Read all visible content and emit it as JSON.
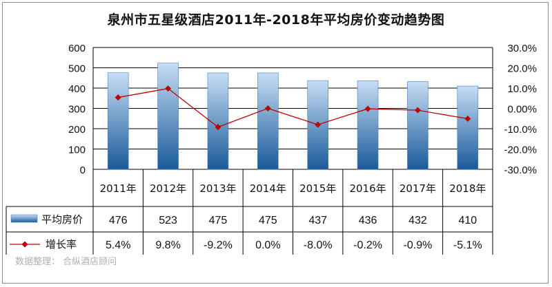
{
  "chart_data": {
    "type": "bar+line",
    "title": "泉州市五星级酒店2011年-2018年平均房价变动趋势图",
    "categories": [
      "2011年",
      "2012年",
      "2013年",
      "2014年",
      "2015年",
      "2016年",
      "2017年",
      "2018年"
    ],
    "series": [
      {
        "name": "平均房价",
        "type": "bar",
        "axis": "left",
        "values": [
          476,
          523,
          475,
          475,
          437,
          436,
          432,
          410
        ],
        "labels": [
          "476",
          "523",
          "475",
          "475",
          "437",
          "436",
          "432",
          "410"
        ]
      },
      {
        "name": "增长率",
        "type": "line",
        "axis": "right",
        "values": [
          5.4,
          9.8,
          -9.2,
          0.0,
          -8.0,
          -0.2,
          -0.9,
          -5.1
        ],
        "labels": [
          "5.4%",
          "9.8%",
          "-9.2%",
          "0.0%",
          "-8.0%",
          "-0.2%",
          "-0.9%",
          "-5.1%"
        ]
      }
    ],
    "y_left": {
      "ylim": [
        0,
        600
      ],
      "ticks": [
        "0",
        "100",
        "200",
        "300",
        "400",
        "500",
        "600"
      ]
    },
    "y_right": {
      "ylim": [
        -30,
        30
      ],
      "ticks": [
        "-30.0%",
        "-20.0%",
        "-10.0%",
        "0.00%",
        "10.0%",
        "20.0%",
        "30.0%"
      ]
    },
    "grid": true,
    "legend": "data-table",
    "colors": {
      "bar_top": "#c6ddf5",
      "bar_bottom": "#1a5a99",
      "line": "#c00000",
      "grid": "#000000"
    }
  },
  "source_note": "数据整理： 合纵酒店顾问"
}
